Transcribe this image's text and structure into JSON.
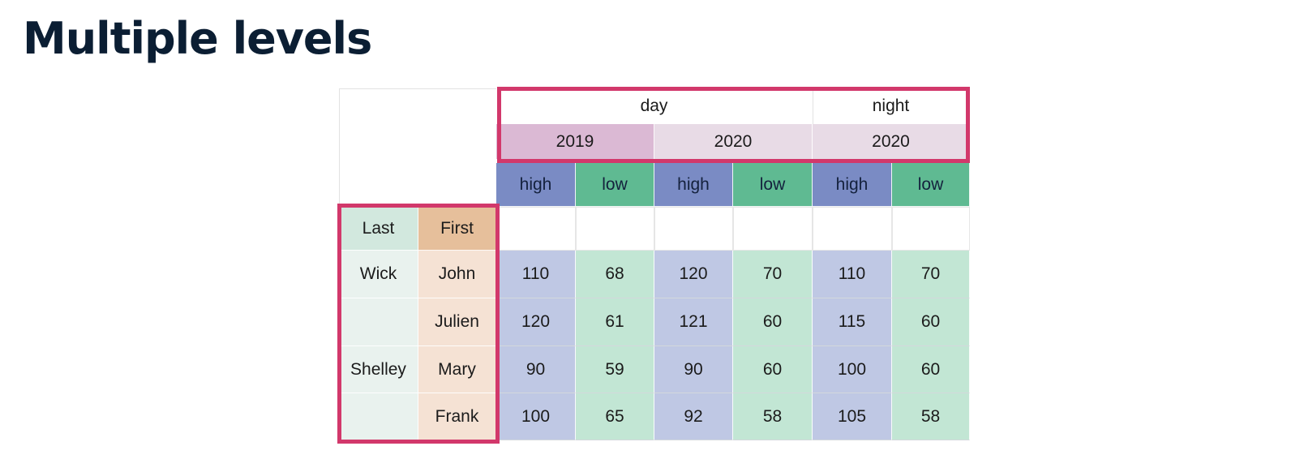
{
  "title": "Multiple levels",
  "colors": {
    "frame": "#d2386b",
    "high_header": "#7a8bc4",
    "low_header": "#5fba92",
    "high_cell": "#bfc8e4",
    "low_cell": "#c2e6d4",
    "year_2019": "#dbb9d4",
    "year_2020": "#e8dbe6",
    "last_col": "#e9f2ee",
    "first_col": "#f5e2d4"
  },
  "column_levels": {
    "top": [
      "day",
      "night"
    ],
    "year": [
      "2019",
      "2020",
      "2020"
    ],
    "measure": [
      "high",
      "low",
      "high",
      "low",
      "high",
      "low"
    ]
  },
  "index_names": [
    "Last",
    "First"
  ],
  "rows": [
    {
      "last": "Wick",
      "first": "John",
      "values": [
        "110",
        "68",
        "120",
        "70",
        "110",
        "70"
      ]
    },
    {
      "last": "",
      "first": "Julien",
      "values": [
        "120",
        "61",
        "121",
        "60",
        "115",
        "60"
      ]
    },
    {
      "last": "Shelley",
      "first": "Mary",
      "values": [
        "90",
        "59",
        "90",
        "60",
        "100",
        "60"
      ]
    },
    {
      "last": "",
      "first": "Frank",
      "values": [
        "100",
        "65",
        "92",
        "58",
        "105",
        "58"
      ]
    }
  ]
}
